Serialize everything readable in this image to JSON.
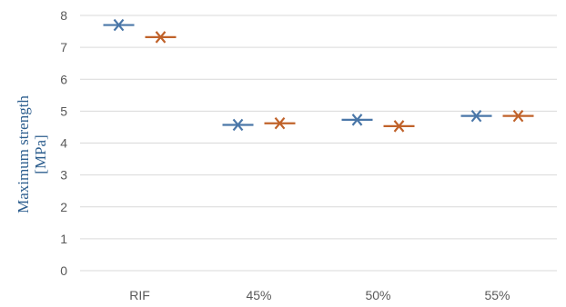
{
  "chart_data": {
    "type": "scatter",
    "categories": [
      "RIF",
      "45%",
      "50%",
      "55%"
    ],
    "series": [
      {
        "values": [
          7.7,
          4.57,
          4.73,
          4.85
        ],
        "color": "#4a77a8"
      },
      {
        "values": [
          7.32,
          4.62,
          4.53,
          4.85
        ],
        "color": "#c0622a"
      }
    ],
    "ylabel_lines": [
      "Maximum strength",
      "[MPa]"
    ],
    "ylim": [
      0,
      8
    ],
    "yticks": [
      "0",
      "1",
      "2",
      "3",
      "4",
      "5",
      "6",
      "7",
      "8"
    ],
    "marker": "star-cross",
    "grid": "horizontal",
    "gridline_color": "#d9d9d9"
  }
}
